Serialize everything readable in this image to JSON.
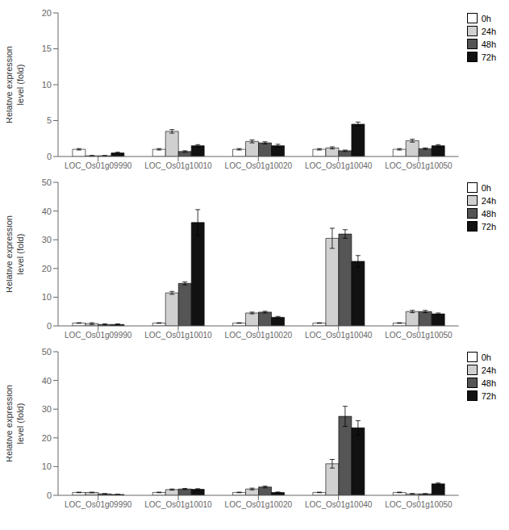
{
  "chart_data": [
    {
      "type": "bar",
      "categories": [
        "LOC_Os01g09990",
        "LOC_Os01g10010",
        "LOC_Os01g10020",
        "LOC_Os01g10040",
        "LOC_Os01g10050"
      ],
      "series": [
        {
          "name": "0h",
          "color": "#ffffff",
          "values": [
            1.0,
            1.0,
            1.0,
            1.0,
            1.0
          ],
          "errors": [
            0.1,
            0.1,
            0.1,
            0.1,
            0.1
          ]
        },
        {
          "name": "24h",
          "color": "#d0d0d0",
          "values": [
            0.1,
            3.5,
            2.1,
            1.2,
            2.2
          ],
          "errors": [
            0.05,
            0.25,
            0.2,
            0.15,
            0.2
          ]
        },
        {
          "name": "48h",
          "color": "#555555",
          "values": [
            0.1,
            0.7,
            1.9,
            0.8,
            1.1
          ],
          "errors": [
            0.05,
            0.1,
            0.15,
            0.1,
            0.1
          ]
        },
        {
          "name": "72h",
          "color": "#111111",
          "values": [
            0.5,
            1.5,
            1.5,
            4.5,
            1.5
          ],
          "errors": [
            0.1,
            0.15,
            0.2,
            0.3,
            0.15
          ]
        }
      ],
      "ylabel": "Relative expression\nlevel (fold)",
      "ylim": [
        0,
        20
      ],
      "yticks": [
        0,
        5,
        10,
        15,
        20
      ],
      "grid": false,
      "legend": "upper right"
    },
    {
      "type": "bar",
      "categories": [
        "LOC_Os01g09990",
        "LOC_Os01g10010",
        "LOC_Os01g10020",
        "LOC_Os01g10040",
        "LOC_Os01g10050"
      ],
      "series": [
        {
          "name": "0h",
          "color": "#ffffff",
          "values": [
            1.0,
            1.0,
            1.0,
            1.0,
            1.0
          ],
          "errors": [
            0.1,
            0.1,
            0.1,
            0.1,
            0.1
          ]
        },
        {
          "name": "24h",
          "color": "#d0d0d0",
          "values": [
            0.8,
            11.5,
            4.5,
            30.5,
            5.0
          ],
          "errors": [
            0.3,
            0.5,
            0.3,
            3.5,
            0.4
          ]
        },
        {
          "name": "48h",
          "color": "#555555",
          "values": [
            0.5,
            14.8,
            4.8,
            32.0,
            5.0
          ],
          "errors": [
            0.2,
            0.5,
            0.3,
            1.5,
            0.4
          ]
        },
        {
          "name": "72h",
          "color": "#111111",
          "values": [
            0.5,
            36.0,
            3.0,
            22.5,
            4.2
          ],
          "errors": [
            0.2,
            4.5,
            0.3,
            2.0,
            0.3
          ]
        }
      ],
      "ylabel": "Relative expression\nlevel (fold)",
      "ylim": [
        0,
        50
      ],
      "yticks": [
        0,
        10,
        20,
        30,
        40,
        50
      ],
      "grid": false,
      "legend": "upper right"
    },
    {
      "type": "bar",
      "categories": [
        "LOC_Os01g09990",
        "LOC_Os01g10010",
        "LOC_Os01g10020",
        "LOC_Os01g10040",
        "LOC_Os01g10050"
      ],
      "series": [
        {
          "name": "0h",
          "color": "#ffffff",
          "values": [
            1.0,
            1.0,
            1.0,
            1.0,
            1.0
          ],
          "errors": [
            0.1,
            0.1,
            0.1,
            0.1,
            0.1
          ]
        },
        {
          "name": "24h",
          "color": "#d0d0d0",
          "values": [
            1.0,
            2.0,
            2.2,
            11.0,
            0.5
          ],
          "errors": [
            0.1,
            0.2,
            0.3,
            1.5,
            0.1
          ]
        },
        {
          "name": "48h",
          "color": "#555555",
          "values": [
            0.5,
            2.2,
            2.9,
            27.5,
            0.5
          ],
          "errors": [
            0.1,
            0.2,
            0.3,
            3.5,
            0.1
          ]
        },
        {
          "name": "72h",
          "color": "#111111",
          "values": [
            0.3,
            2.1,
            1.0,
            23.5,
            4.0
          ],
          "errors": [
            0.05,
            0.2,
            0.15,
            2.5,
            0.3
          ]
        }
      ],
      "ylabel": "Relative expression\nlevel (fold)",
      "ylim": [
        0,
        50
      ],
      "yticks": [
        0,
        10,
        20,
        30,
        40,
        50
      ],
      "grid": false,
      "legend": "upper right"
    }
  ]
}
